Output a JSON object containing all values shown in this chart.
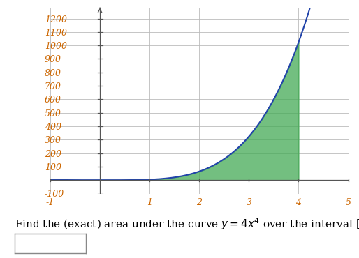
{
  "xlim": [
    -1,
    5
  ],
  "ylim": [
    -100,
    1280
  ],
  "xticks": [
    -1,
    1,
    2,
    3,
    4,
    5
  ],
  "yticks": [
    -100,
    100,
    200,
    300,
    400,
    500,
    600,
    700,
    800,
    900,
    1000,
    1100,
    1200
  ],
  "curve_color": "#2244aa",
  "fill_color": "#44aa55",
  "fill_alpha": 0.75,
  "grid_color": "#bbbbbb",
  "tick_label_color": "#cc6600",
  "fill_xmin": 0,
  "fill_xmax": 4
}
